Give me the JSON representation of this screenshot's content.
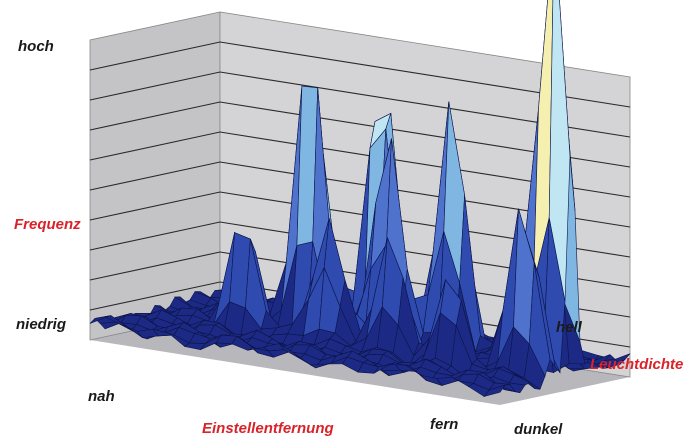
{
  "chart_data": {
    "type": "surface",
    "z_axis": {
      "label": "Frequenz",
      "tick_labels": [
        "hoch",
        "niedrig"
      ]
    },
    "x_axis": {
      "label": "Einstellentfernung",
      "tick_labels": [
        "nah",
        "fern"
      ]
    },
    "y_axis": {
      "label": "Leuchtdichte",
      "tick_labels": [
        "dunkel",
        "hell"
      ]
    },
    "zlim": [
      0,
      10
    ],
    "grid": true,
    "colors": {
      "wall": "#d4d4d6",
      "floor": "#b8b8bc",
      "grid": "#2a2a2a",
      "bands": [
        "#1c2a86",
        "#2f4bb0",
        "#4f73cc",
        "#7fb6e2",
        "#bfe6f2",
        "#f5efb0",
        "#f0da58",
        "#e88a35",
        "#c8322a"
      ]
    },
    "peaks": [
      {
        "x": 0.365,
        "y": 0.55,
        "height": 10.2
      },
      {
        "x": 0.52,
        "y": 0.6,
        "height": 9.6
      },
      {
        "x": 0.57,
        "y": 0.5,
        "height": 7.3
      },
      {
        "x": 0.7,
        "y": 0.58,
        "height": 8.6
      },
      {
        "x": 0.25,
        "y": 0.4,
        "height": 3.8
      },
      {
        "x": 0.46,
        "y": 0.38,
        "height": 4.5
      },
      {
        "x": 0.62,
        "y": 0.35,
        "height": 4.0
      },
      {
        "x": 0.78,
        "y": 0.3,
        "height": 2.8
      },
      {
        "x": 0.87,
        "y": 0.55,
        "height": 3.0
      },
      {
        "x": 0.96,
        "y": 0.55,
        "height": 15.5
      },
      {
        "x": 0.93,
        "y": 0.4,
        "height": 6.0
      }
    ]
  }
}
